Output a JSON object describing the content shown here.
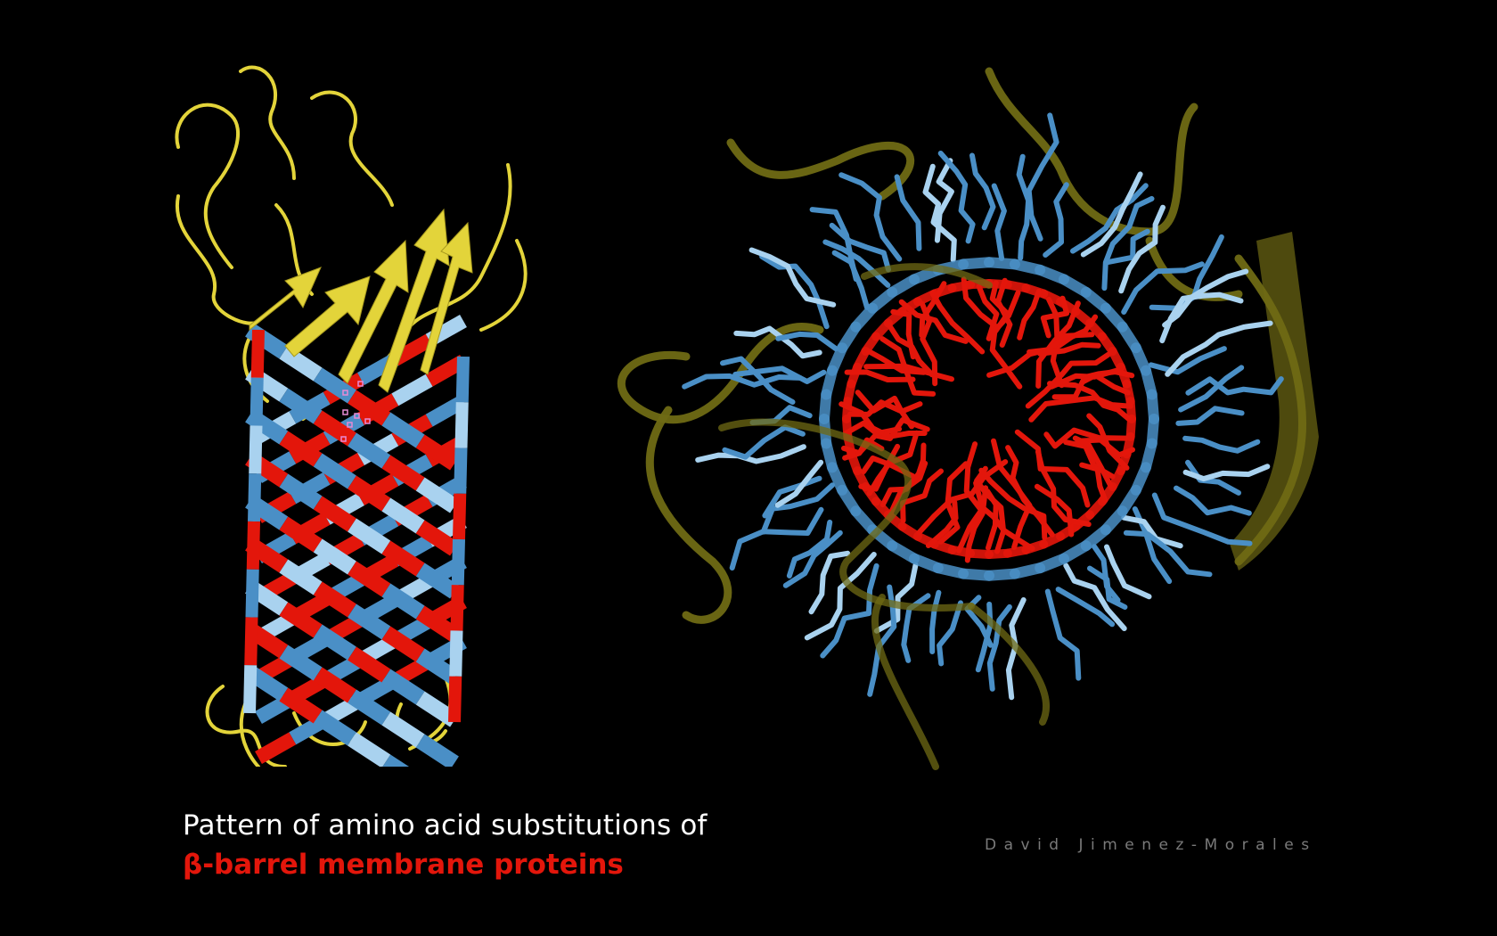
{
  "caption": {
    "line1": "Pattern of amino acid substitutions of",
    "line2": "β-barrel membrane proteins"
  },
  "credit": "David Jimenez-Morales",
  "colors": {
    "background": "#000000",
    "loop_yellow": "#e3d43a",
    "loop_olive": "#6f6a14",
    "strand_red": "#e3160b",
    "strand_blue": "#4a8fc6",
    "strand_lightblue": "#a9d2ef",
    "caption_white": "#ffffff",
    "caption_red": "#e3160b",
    "credit_grey": "#7a7a7a"
  },
  "images": {
    "left": "beta-barrel-side-view-ribbon",
    "right": "beta-barrel-top-view-sticks"
  }
}
